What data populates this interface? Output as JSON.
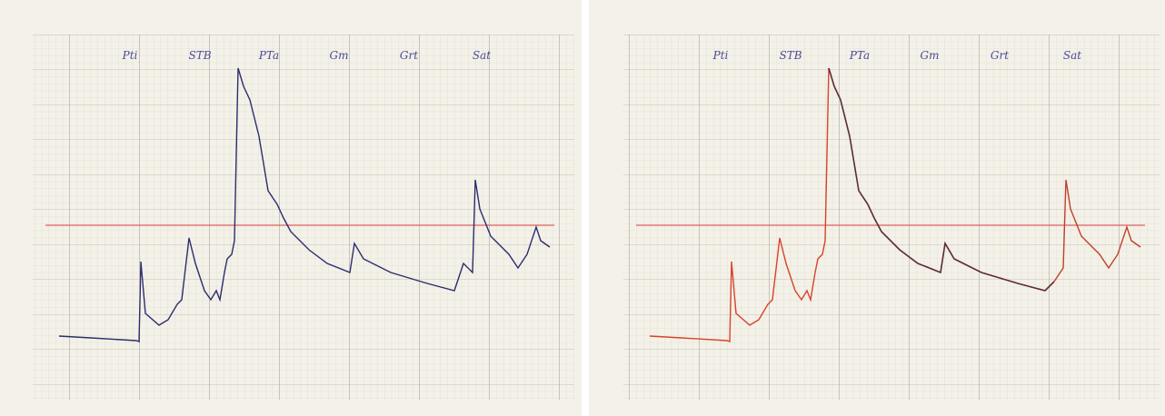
{
  "panels": [
    {
      "labels": [
        "Pti",
        "STB",
        "PTa",
        "Gm",
        "Grt",
        "Sat"
      ]
    },
    {
      "labels": [
        "Pti",
        "STB",
        "PTa",
        "Gm",
        "Grt",
        "Sat"
      ]
    }
  ]
}
